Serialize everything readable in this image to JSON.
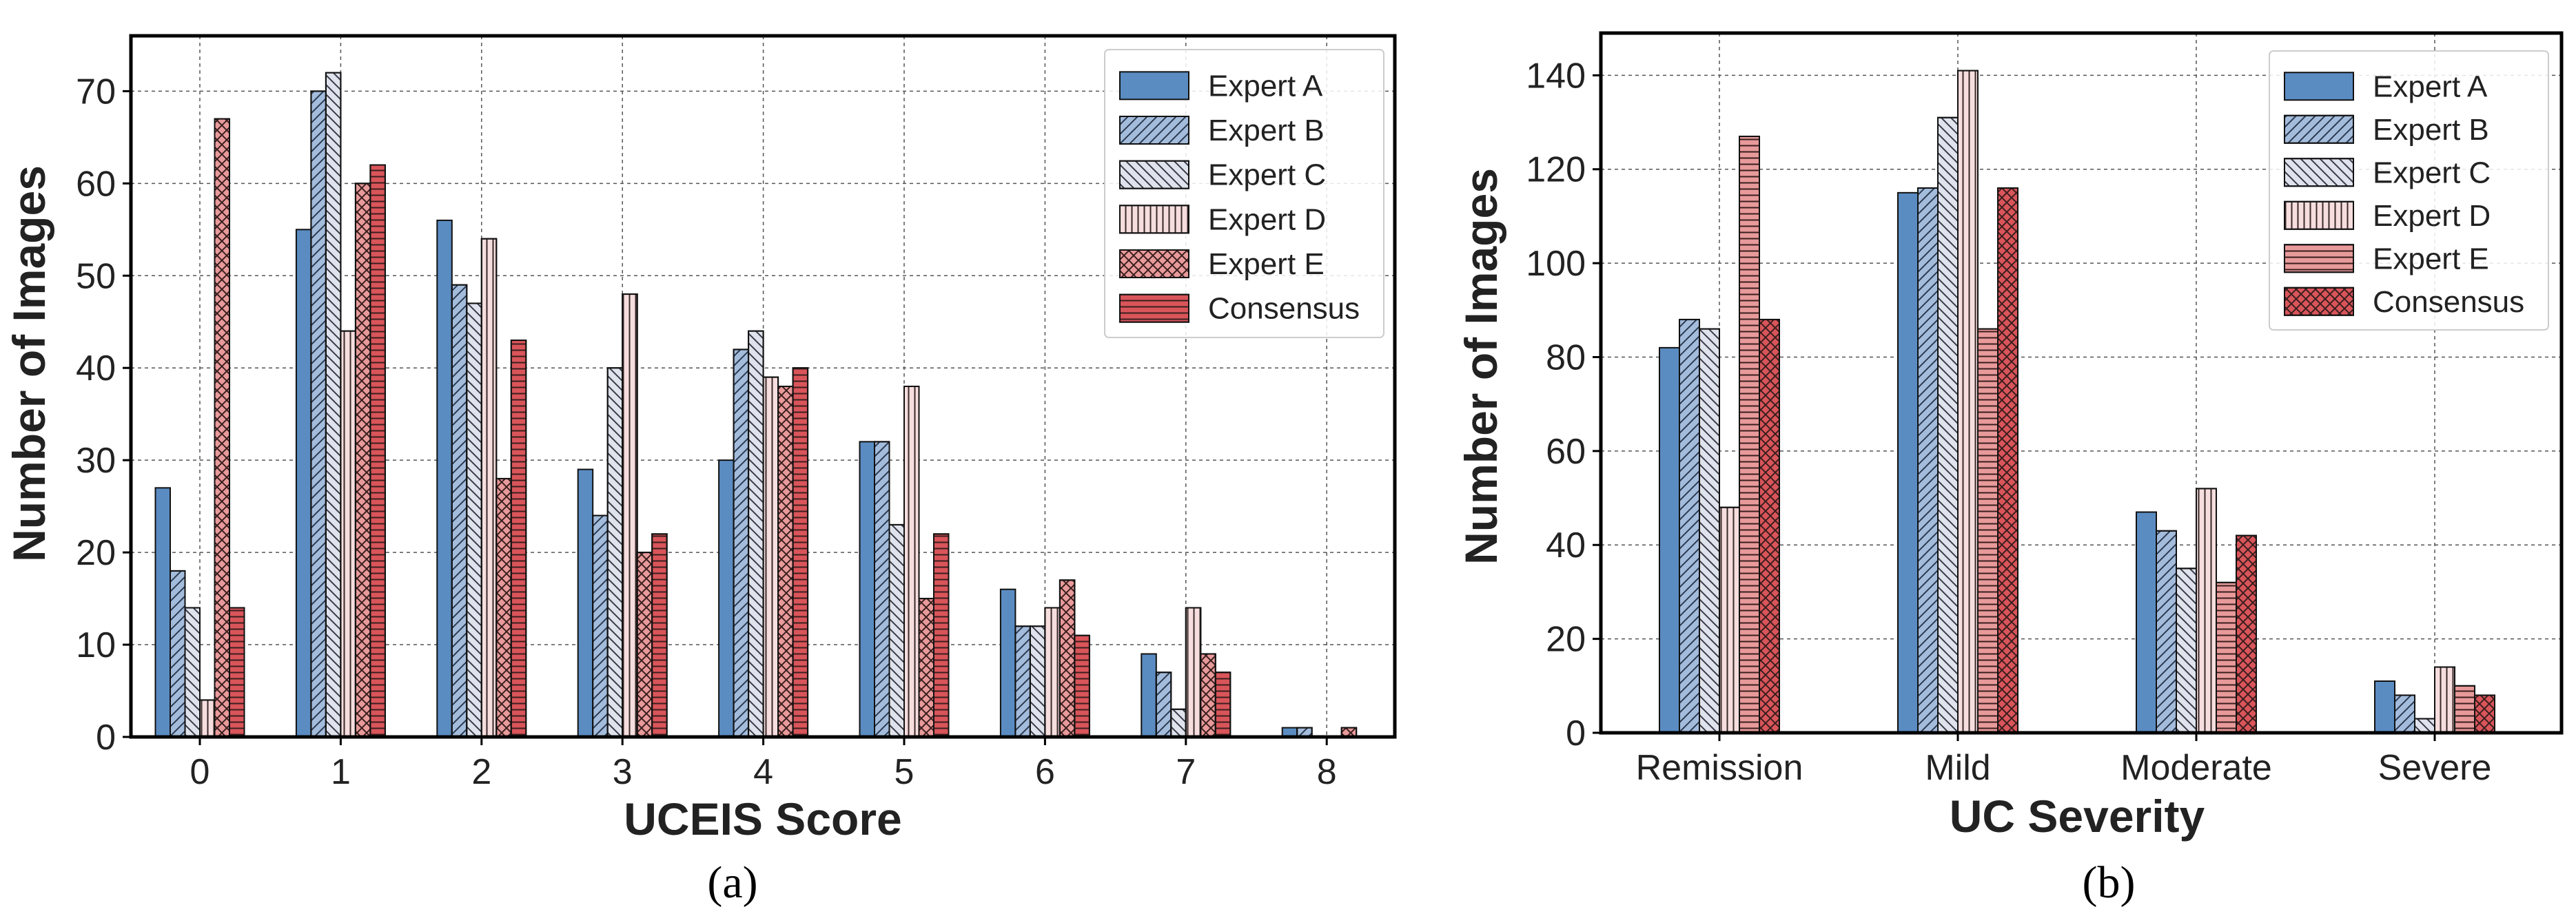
{
  "chart_data": [
    {
      "type": "bar",
      "caption": "(a)",
      "xlabel": "UCEIS Score",
      "ylabel": "Number of Images",
      "ylim": [
        0,
        76
      ],
      "yticks": [
        0,
        10,
        20,
        30,
        40,
        50,
        60,
        70
      ],
      "categories": [
        "0",
        "1",
        "2",
        "3",
        "4",
        "5",
        "6",
        "7",
        "8"
      ],
      "legend_position": "top-right",
      "grid": true,
      "series": [
        {
          "name": "Expert A",
          "color": "#5a8cc2",
          "hatch": "none",
          "values": [
            27,
            55,
            56,
            29,
            30,
            32,
            16,
            9,
            1
          ]
        },
        {
          "name": "Expert B",
          "color": "#a4bcdc",
          "hatch": "diag-right",
          "values": [
            18,
            70,
            49,
            24,
            42,
            32,
            12,
            7,
            1
          ]
        },
        {
          "name": "Expert C",
          "color": "#dfe3ec",
          "hatch": "diag-left",
          "values": [
            14,
            72,
            47,
            40,
            44,
            23,
            12,
            3,
            0
          ]
        },
        {
          "name": "Expert D",
          "color": "#f7dede",
          "hatch": "vertical",
          "values": [
            4,
            44,
            54,
            48,
            39,
            38,
            14,
            14,
            0
          ]
        },
        {
          "name": "Expert E",
          "color": "#e89a9a",
          "hatch": "cross",
          "values": [
            67,
            60,
            28,
            20,
            38,
            15,
            17,
            9,
            1
          ]
        },
        {
          "name": "Consensus",
          "color": "#d9555a",
          "hatch": "horizontal",
          "values": [
            14,
            62,
            43,
            22,
            40,
            22,
            11,
            7,
            0
          ]
        }
      ]
    },
    {
      "type": "bar",
      "caption": "(b)",
      "xlabel": "UC Severity",
      "ylabel": "Number of Images",
      "ylim": [
        0,
        149
      ],
      "yticks": [
        0,
        20,
        40,
        60,
        80,
        100,
        120,
        140
      ],
      "categories": [
        "Remission",
        "Mild",
        "Moderate",
        "Severe"
      ],
      "legend_position": "top-right",
      "grid": true,
      "series": [
        {
          "name": "Expert A",
          "color": "#5a8cc2",
          "hatch": "none",
          "values": [
            82,
            115,
            47,
            11
          ]
        },
        {
          "name": "Expert B",
          "color": "#a4bcdc",
          "hatch": "diag-right",
          "values": [
            88,
            116,
            43,
            8
          ]
        },
        {
          "name": "Expert C",
          "color": "#dfe3ec",
          "hatch": "diag-left",
          "values": [
            86,
            131,
            35,
            3
          ]
        },
        {
          "name": "Expert D",
          "color": "#f7dede",
          "hatch": "vertical",
          "values": [
            48,
            141,
            52,
            14
          ]
        },
        {
          "name": "Expert E",
          "color": "#e89a9a",
          "hatch": "horizontal",
          "values": [
            127,
            86,
            32,
            10
          ]
        },
        {
          "name": "Consensus",
          "color": "#d9555a",
          "hatch": "cross",
          "values": [
            88,
            116,
            42,
            8
          ]
        }
      ]
    }
  ]
}
